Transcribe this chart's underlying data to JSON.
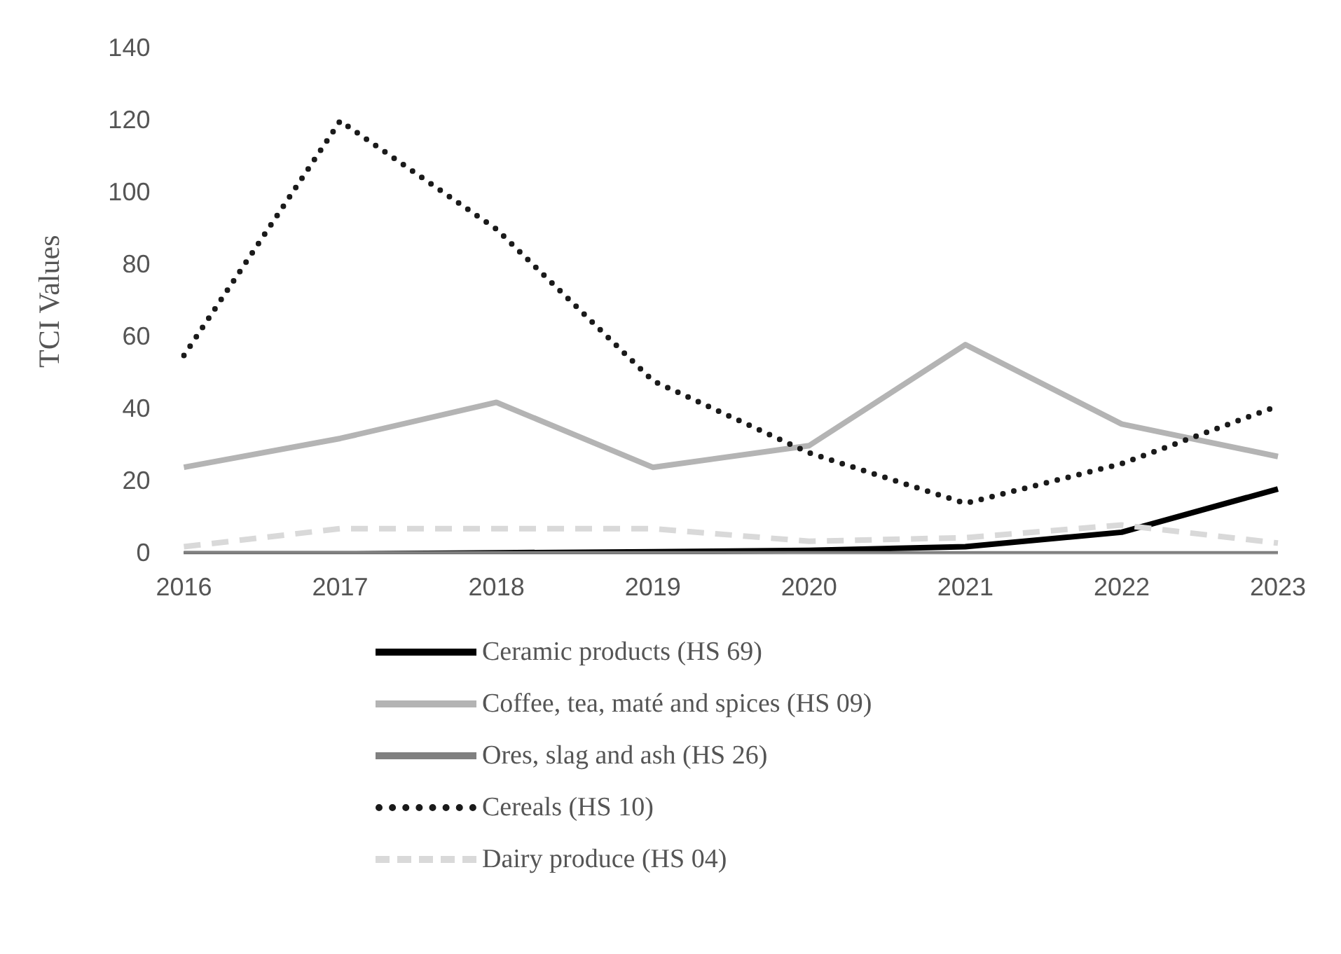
{
  "chart_data": {
    "type": "line",
    "ylabel": "TCI Values",
    "categories": [
      "2016",
      "2017",
      "2018",
      "2019",
      "2020",
      "2021",
      "2022",
      "2023"
    ],
    "ylim": [
      0,
      140
    ],
    "yticks": [
      0,
      20,
      40,
      60,
      80,
      100,
      120,
      140
    ],
    "grid": false,
    "legend": "bottom",
    "marker": "none",
    "series": [
      {
        "name": "Ceramic products (HS 69)",
        "color": "#000000",
        "line_style": "solid",
        "values": [
          0,
          0,
          0.3,
          0.6,
          1,
          2,
          6,
          18
        ]
      },
      {
        "name": "Coffee, tea, maté and spices (HS 09)",
        "color": "#b4b4b4",
        "line_style": "solid",
        "values": [
          24,
          32,
          42,
          24,
          30,
          58,
          36,
          27
        ]
      },
      {
        "name": "Ores, slag and ash (HS 26)",
        "color": "#808080",
        "line_style": "solid",
        "values": [
          0,
          0,
          0,
          0,
          0,
          0,
          0,
          0
        ]
      },
      {
        "name": "Cereals (HS 10)",
        "color": "#1a1a1a",
        "line_style": "dotted",
        "values": [
          55,
          120,
          90,
          48,
          28,
          14,
          25,
          41
        ]
      },
      {
        "name": "Dairy produce (HS 04)",
        "color": "#d9d9d9",
        "line_style": "dashed",
        "values": [
          2,
          7,
          7,
          7,
          3.5,
          4.5,
          8,
          3
        ]
      }
    ]
  }
}
